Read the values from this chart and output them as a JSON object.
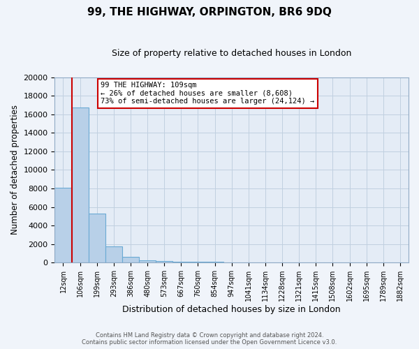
{
  "title": "99, THE HIGHWAY, ORPINGTON, BR6 9DQ",
  "subtitle": "Size of property relative to detached houses in London",
  "xlabel": "Distribution of detached houses by size in London",
  "ylabel": "Number of detached properties",
  "bar_color": "#b8d0e8",
  "bar_edge_color": "#6aaad4",
  "categories": [
    "12sqm",
    "106sqm",
    "199sqm",
    "293sqm",
    "386sqm",
    "480sqm",
    "573sqm",
    "667sqm",
    "760sqm",
    "854sqm",
    "947sqm",
    "1041sqm",
    "1134sqm",
    "1228sqm",
    "1321sqm",
    "1415sqm",
    "1508sqm",
    "1602sqm",
    "1695sqm",
    "1789sqm",
    "1882sqm"
  ],
  "values": [
    8100,
    16700,
    5300,
    1750,
    650,
    280,
    150,
    120,
    80,
    60,
    0,
    0,
    0,
    0,
    0,
    0,
    0,
    0,
    0,
    0,
    0
  ],
  "ylim": [
    0,
    20000
  ],
  "yticks": [
    0,
    2000,
    4000,
    6000,
    8000,
    10000,
    12000,
    14000,
    16000,
    18000,
    20000
  ],
  "vline_color": "#cc0000",
  "annotation_text_line1": "99 THE HIGHWAY: 109sqm",
  "annotation_text_line2": "← 26% of detached houses are smaller (8,608)",
  "annotation_text_line3": "73% of semi-detached houses are larger (24,124) →",
  "footer_line1": "Contains HM Land Registry data © Crown copyright and database right 2024.",
  "footer_line2": "Contains public sector information licensed under the Open Government Licence v3.0.",
  "bg_color": "#f0f4fa",
  "grid_color": "#c0d0e0",
  "plot_bg_color": "#e4ecf6"
}
